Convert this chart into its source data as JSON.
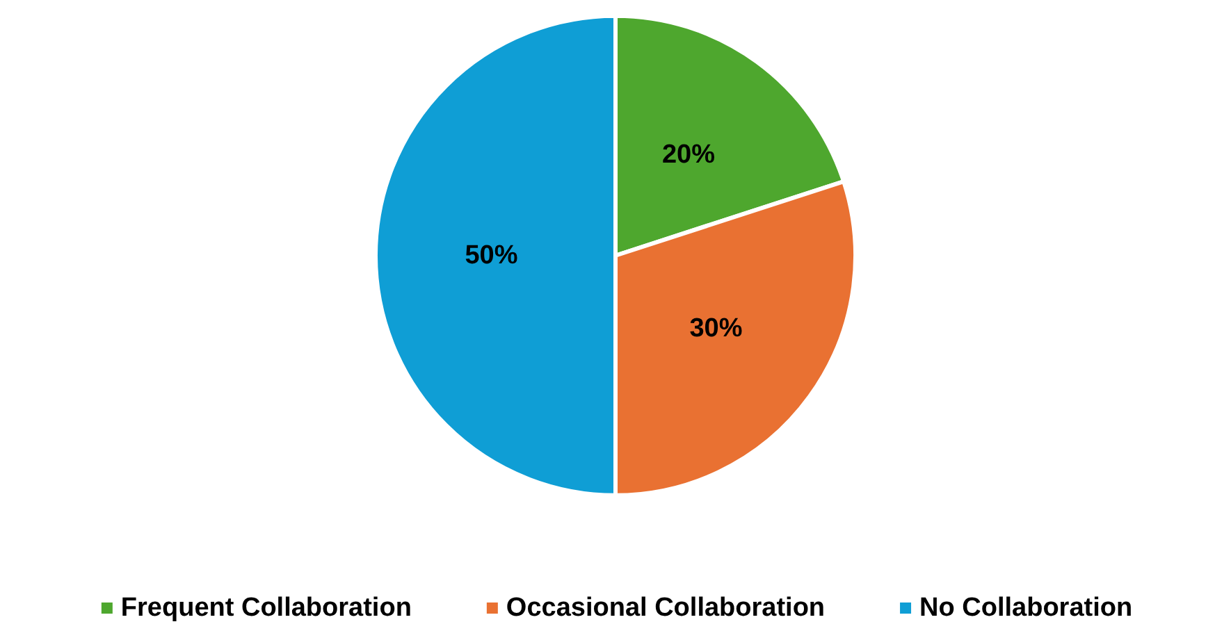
{
  "chart_data": {
    "type": "pie",
    "categories": [
      "Frequent Collaboration",
      "Occasional Collaboration",
      "No Collaboration"
    ],
    "values": [
      20,
      30,
      50
    ],
    "colors": [
      "#4ea72e",
      "#e97132",
      "#0f9ed5"
    ],
    "value_labels": [
      "20%",
      "30%",
      "50%"
    ],
    "legend": "bottom"
  }
}
